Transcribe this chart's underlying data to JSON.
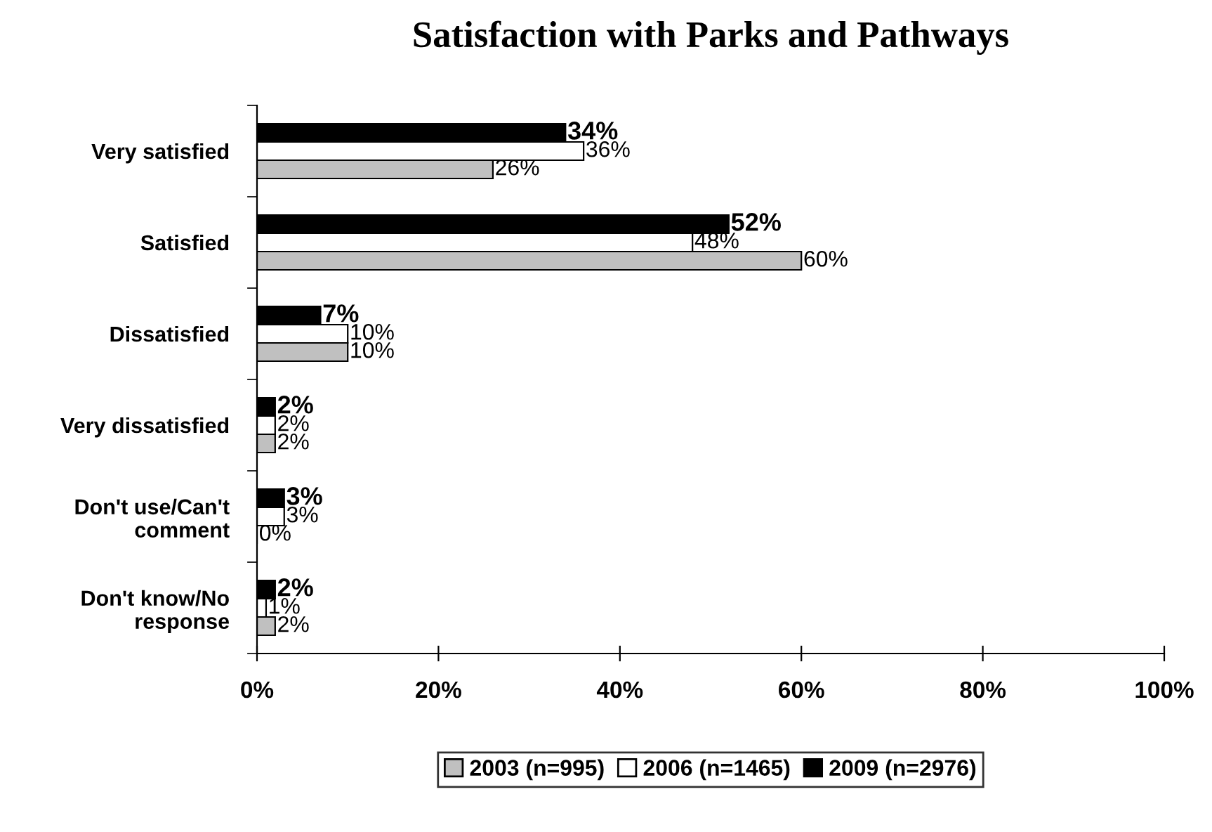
{
  "chart_data": {
    "type": "bar",
    "orientation": "horizontal",
    "title": "Satisfaction with Parks and Pathways",
    "categories": [
      "Very satisfied",
      "Satisfied",
      "Dissatisfied",
      "Very dissatisfied",
      "Don't use/Can't comment",
      "Don't know/No response"
    ],
    "series": [
      {
        "name": "2003 (n=995)",
        "color": "#c0c0c0",
        "values": [
          26,
          60,
          10,
          2,
          0,
          2
        ],
        "value_labels": [
          "26%",
          "60%",
          "10%",
          "2%",
          "0%",
          "2%"
        ]
      },
      {
        "name": "2006 (n=1465)",
        "color": "#ffffff",
        "values": [
          36,
          48,
          10,
          2,
          3,
          1
        ],
        "value_labels": [
          "36%",
          "48%",
          "10%",
          "2%",
          "3%",
          "1%"
        ]
      },
      {
        "name": "2009 (n=2976)",
        "color": "#000000",
        "values": [
          34,
          52,
          7,
          2,
          3,
          2
        ],
        "value_labels": [
          "34%",
          "52%",
          "7%",
          "2%",
          "3%",
          "2%"
        ]
      }
    ],
    "xlim": [
      0,
      100
    ],
    "xticks": [
      {
        "value": 0,
        "label": "0%"
      },
      {
        "value": 20,
        "label": "20%"
      },
      {
        "value": 40,
        "label": "40%"
      },
      {
        "value": 60,
        "label": "60%"
      },
      {
        "value": 80,
        "label": "80%"
      },
      {
        "value": 100,
        "label": "100%"
      }
    ],
    "grid": false,
    "legend": "bottom"
  }
}
